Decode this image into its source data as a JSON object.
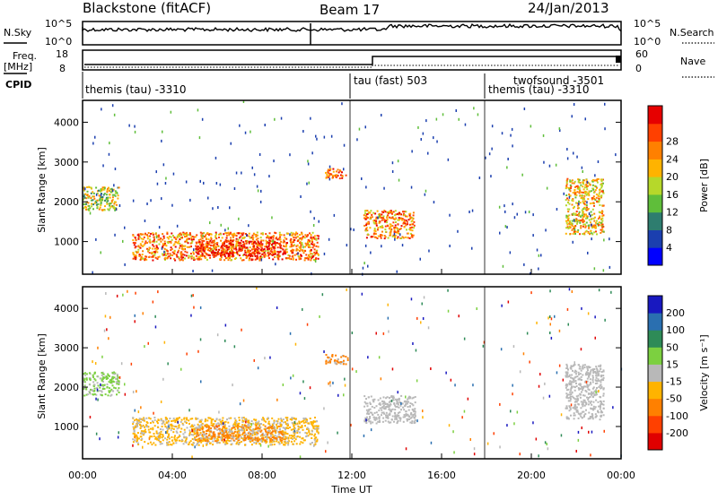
{
  "header": {
    "station": "Blackstone (fitACF)",
    "beam": "Beam 17",
    "date": "24/Jan/2013"
  },
  "noise_panel": {
    "left_label": "N.Sky",
    "right_label": "N.Search",
    "left_ticks": [
      "10^5",
      "10^0"
    ],
    "right_ticks": [
      "10^5",
      "10^0"
    ]
  },
  "freq_panel": {
    "left_label_1": "Freq.",
    "left_label_2": "[MHz]",
    "right_label": "Nave",
    "left_ticks": [
      "18",
      "8"
    ],
    "right_ticks": [
      "60",
      "0"
    ]
  },
  "cpid": {
    "label": "CPID",
    "modes": [
      {
        "name": "themis (tau) -3310",
        "start_hour": 0.0
      },
      {
        "name": "tau (fast) 503",
        "start_hour": 12.0
      },
      {
        "name": "twofsound -3501",
        "start_hour": 18.0
      },
      {
        "name": "themis (tau) -3310",
        "start_hour": 18.0
      }
    ]
  },
  "axes": {
    "x_label": "Time UT",
    "x_ticks": [
      "00:00",
      "04:00",
      "08:00",
      "12:00",
      "16:00",
      "20:00",
      "00:00"
    ],
    "y_label": "Slant Range [km]",
    "y_ticks": [
      "1000",
      "2000",
      "3000",
      "4000"
    ]
  },
  "power_colorbar": {
    "label": "Power [dB]",
    "ticks": [
      "4",
      "8",
      "12",
      "16",
      "20",
      "24",
      "28"
    ],
    "colors": [
      "#0000ff",
      "#1b3faf",
      "#2e7d6f",
      "#5fbe3a",
      "#b6d82a",
      "#ffb300",
      "#ff8000",
      "#ff4000",
      "#e60000"
    ]
  },
  "velocity_colorbar": {
    "label": "Velocity [m s⁻¹]",
    "ticks": [
      "200",
      "100",
      "50",
      "15",
      "-15",
      "-50",
      "-100",
      "-200"
    ],
    "colors": [
      "#1818c0",
      "#2a6fb0",
      "#2e8b57",
      "#7cd040",
      "#b8b8b8",
      "#ffb300",
      "#ff8000",
      "#ff4000",
      "#e00000"
    ]
  },
  "chart_data": {
    "type": "heatmap",
    "title": "Blackstone (fitACF)",
    "xlabel": "Time UT",
    "ylabel": "Slant Range [km]",
    "xlim_hours": [
      0,
      24
    ],
    "ylim_km": [
      180,
      4550
    ],
    "echo_regions": [
      {
        "t0": 0.0,
        "t1": 1.6,
        "r0": 1800,
        "r1": 2400,
        "power_db": 14,
        "velocity": 30
      },
      {
        "t0": 2.2,
        "t1": 10.5,
        "r0": 550,
        "r1": 1250,
        "power_db": 20,
        "velocity": -40
      },
      {
        "t0": 5.0,
        "t1": 9.0,
        "r0": 650,
        "r1": 1050,
        "power_db": 28,
        "velocity": -60
      },
      {
        "t0": 12.5,
        "t1": 14.8,
        "r0": 1100,
        "r1": 1800,
        "power_db": 18,
        "velocity": -5
      },
      {
        "t0": 21.5,
        "t1": 23.2,
        "r0": 1200,
        "r1": 2600,
        "power_db": 16,
        "velocity": 10
      },
      {
        "t0": 10.8,
        "t1": 11.8,
        "r0": 2600,
        "r1": 2850,
        "power_db": 22,
        "velocity": -80
      }
    ]
  }
}
